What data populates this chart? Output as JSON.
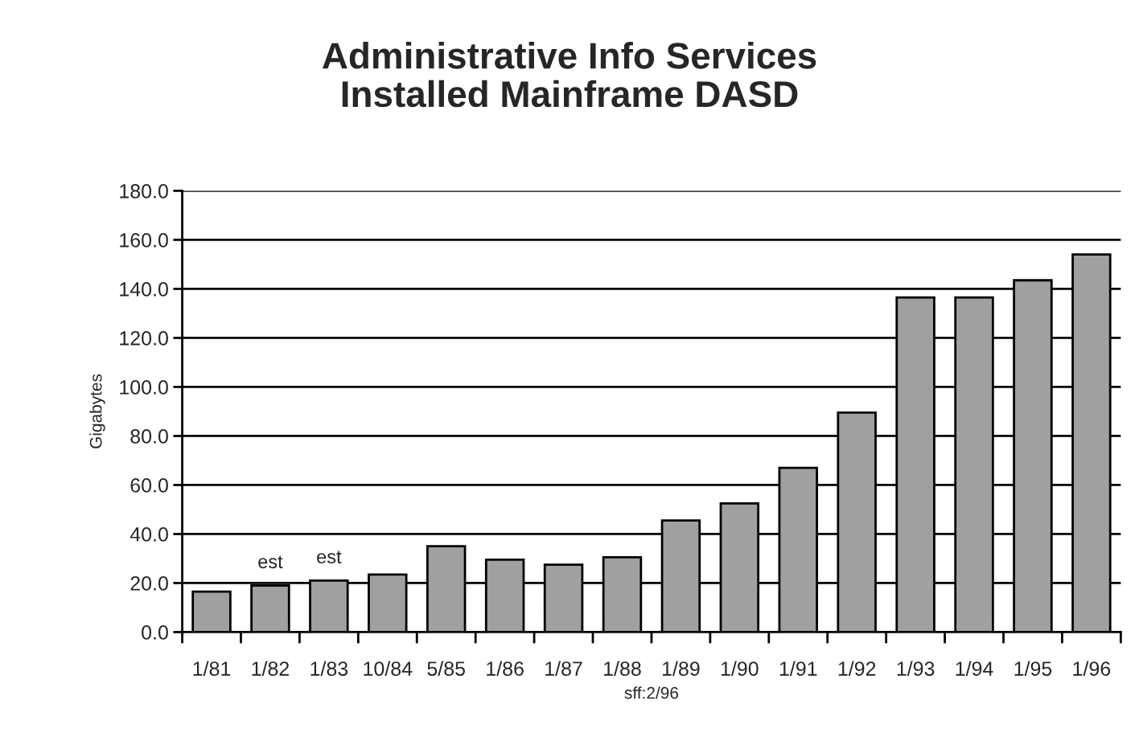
{
  "chart_data": {
    "type": "bar",
    "title": "Administrative Info Services\nInstalled Mainframe DASD",
    "ylabel": "Gigabytes",
    "categories": [
      "1/81",
      "1/82",
      "1/83",
      "10/84",
      "5/85",
      "1/86",
      "1/87",
      "1/88",
      "1/89",
      "1/90",
      "1/91",
      "1/92",
      "1/93",
      "1/94",
      "1/95",
      "1/96"
    ],
    "values": [
      16.5,
      19,
      21,
      23.5,
      35,
      29.5,
      27.5,
      30.5,
      45.5,
      52.5,
      67,
      89.5,
      136.5,
      136.5,
      143.5,
      154
    ],
    "color": "#a0a0a0",
    "ylim": [
      0,
      180
    ],
    "yticks": [
      {
        "value": 0,
        "label": "0.0"
      },
      {
        "value": 20,
        "label": "20.0"
      },
      {
        "value": 40,
        "label": "40.0"
      },
      {
        "value": 60,
        "label": "60.0"
      },
      {
        "value": 80,
        "label": "80.0"
      },
      {
        "value": 100,
        "label": "100.0"
      },
      {
        "value": 120,
        "label": "120.0"
      },
      {
        "value": 140,
        "label": "140.0"
      },
      {
        "value": 160,
        "label": "160.0"
      },
      {
        "value": 180,
        "label": "180.0"
      }
    ],
    "grid": "y",
    "annotations": [
      {
        "text": "est",
        "x": "1/82",
        "y": 19
      },
      {
        "text": "est",
        "x": "1/83",
        "y": 21
      },
      "sff:2/96"
    ]
  }
}
